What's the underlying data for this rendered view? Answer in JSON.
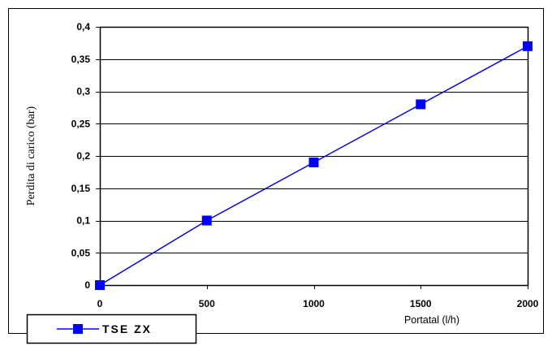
{
  "chart_data": {
    "type": "line",
    "x": [
      0,
      500,
      1000,
      1500,
      2000
    ],
    "series": [
      {
        "name": "TSE ZX",
        "values": [
          0,
          0.1,
          0.19,
          0.28,
          0.37
        ]
      }
    ],
    "x_ticks": [
      "0",
      "500",
      "1000",
      "1500",
      "2000"
    ],
    "y_ticks": [
      {
        "value": 0,
        "label": "0"
      },
      {
        "value": 0.05,
        "label": "0,05"
      },
      {
        "value": 0.1,
        "label": "0,1"
      },
      {
        "value": 0.15,
        "label": "0,15"
      },
      {
        "value": 0.2,
        "label": "0,2"
      },
      {
        "value": 0.25,
        "label": "0,25"
      },
      {
        "value": 0.3,
        "label": "0,3"
      },
      {
        "value": 0.35,
        "label": "0,35"
      },
      {
        "value": 0.4,
        "label": "0,4"
      }
    ],
    "xlabel": "Portatal (l/h)",
    "ylabel": "Perdita di carico (bar)",
    "xlim": [
      0,
      2000
    ],
    "ylim": [
      0,
      0.4
    ],
    "grid": "horizontal",
    "legend_position": "bottom-left",
    "colors": {
      "series": "#0000ff",
      "grid": "#000000",
      "frame": "#000000"
    }
  }
}
